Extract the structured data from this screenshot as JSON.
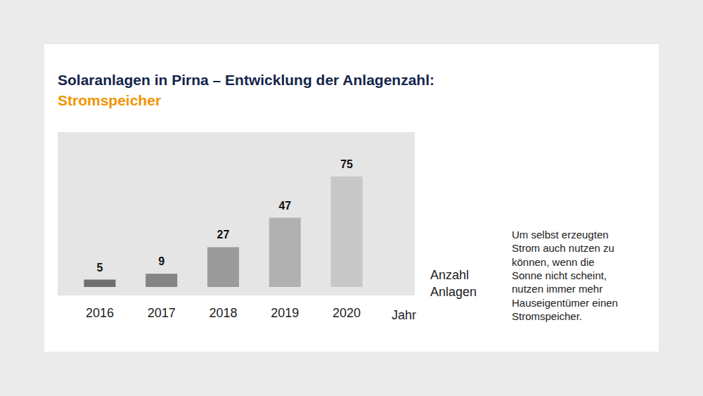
{
  "chart_data": {
    "type": "bar",
    "title": "Solaranlagen in Pirna – Entwicklung der Anlagenzahl:",
    "subtitle": "Stromspeicher",
    "x_label": "Jahr",
    "y_label": "Anzahl Anlagen",
    "annotation": [
      "Um selbst erzeugten",
      "Strom auch nutzen zu",
      "können, wenn die",
      "Sonne nicht scheint,",
      "nutzen immer mehr",
      "Hauseigentümer einen",
      "Stromspeicher."
    ],
    "categories": [
      "2016",
      "2017",
      "2018",
      "2019",
      "2020"
    ],
    "values": [
      5,
      9,
      27,
      47,
      75
    ],
    "colors": [
      "#6f6f6f",
      "#858585",
      "#9b9b9b",
      "#b1b1b1",
      "#c7c7c7"
    ],
    "ylim": [
      0,
      105
    ],
    "yticks": [],
    "data_labels": true,
    "tick_labels": "x",
    "grid": false
  }
}
